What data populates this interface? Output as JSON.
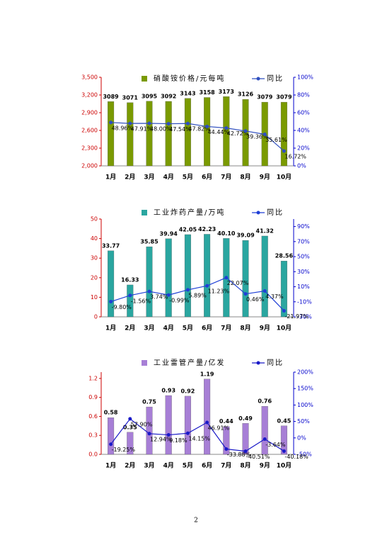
{
  "chart_data": [
    {
      "type": "bar_line",
      "categories": [
        "1月",
        "2月",
        "3月",
        "4月",
        "5月",
        "6月",
        "7月",
        "8月",
        "9月",
        "10月"
      ],
      "ylim": [
        2000,
        3500
      ],
      "yticks": [
        {
          "value": 2000,
          "label": "2,000"
        },
        {
          "value": 2300,
          "label": "2,300"
        },
        {
          "value": 2600,
          "label": "2,600"
        },
        {
          "value": 2900,
          "label": "2,900"
        },
        {
          "value": 3200,
          "label": "3,200"
        },
        {
          "value": 3500,
          "label": "3,500"
        }
      ],
      "y2lim": [
        0,
        100
      ],
      "y2ticks": [
        {
          "value": 0,
          "label": "0%"
        },
        {
          "value": 20,
          "label": "20%"
        },
        {
          "value": 40,
          "label": "40%"
        },
        {
          "value": 60,
          "label": "60%"
        },
        {
          "value": 80,
          "label": "80%"
        },
        {
          "value": 100,
          "label": "100%"
        }
      ],
      "series": [
        {
          "name": "硝酸铵价格/元每吨",
          "type": "bar",
          "color": "#7a9a01",
          "values": [
            3089,
            3071,
            3095,
            3092,
            3143,
            3158,
            3173,
            3126,
            3079,
            3079
          ]
        },
        {
          "name": "同比",
          "type": "line",
          "axis": "y2",
          "color": "#2f4fbf",
          "values": [
            48.96,
            47.91,
            48.0,
            47.54,
            47.82,
            44.44,
            42.72,
            39.36,
            35.61,
            16.72
          ],
          "value_labels": [
            "48.96%",
            "47.91%",
            "48.00%",
            "47.54%",
            "47.82%",
            "44.44%",
            "42.72%",
            "39.36%",
            "35.61%",
            "16.72%"
          ]
        }
      ]
    },
    {
      "type": "bar_line",
      "categories": [
        "1月",
        "2月",
        "3月",
        "4月",
        "5月",
        "6月",
        "7月",
        "8月",
        "9月",
        "10月"
      ],
      "ylim": [
        0,
        50
      ],
      "yticks": [
        0,
        10,
        20,
        30,
        40,
        50
      ],
      "y2lim": [
        -30,
        100
      ],
      "y2ticks": [
        {
          "value": -30,
          "label": "-30%"
        },
        {
          "value": -10,
          "label": "-10%"
        },
        {
          "value": 10,
          "label": "10%"
        },
        {
          "value": 30,
          "label": "30%"
        },
        {
          "value": 50,
          "label": "50%"
        },
        {
          "value": 70,
          "label": "70%"
        },
        {
          "value": 90,
          "label": "90%"
        }
      ],
      "series": [
        {
          "name": "工业炸药产量/万吨",
          "type": "bar",
          "color": "#2aa6a0",
          "values": [
            33.77,
            16.33,
            35.85,
            39.94,
            42.05,
            42.23,
            40.1,
            39.09,
            41.32,
            28.56
          ],
          "value_labels": [
            "33.77",
            "16.33",
            "35.85",
            "39.94",
            "42.05",
            "42.23",
            "40.10",
            "39.09",
            "41.32",
            "28.56"
          ]
        },
        {
          "name": "同比",
          "type": "line",
          "axis": "y2",
          "color": "#1f3fd6",
          "values": [
            -9.8,
            -1.56,
            3.74,
            -0.99,
            5.89,
            11.23,
            22.07,
            0.46,
            4.37,
            -21.97
          ],
          "value_labels": [
            "-9.80%",
            "-1.56%",
            "3.74%",
            "-0.99%",
            "5.89%",
            "11.23%",
            "22.07%",
            "0.46%",
            "4.37%",
            "-21.97%"
          ]
        }
      ]
    },
    {
      "type": "bar_line",
      "categories": [
        "1月",
        "2月",
        "3月",
        "4月",
        "5月",
        "6月",
        "7月",
        "8月",
        "9月",
        "10月"
      ],
      "ylim": [
        0,
        1.3
      ],
      "yticks": [
        {
          "value": 0,
          "label": "0.0"
        },
        0.3,
        0.6,
        0.9,
        1.2
      ],
      "y2lim": [
        -50,
        200
      ],
      "y2ticks": [
        {
          "value": -50,
          "label": "-50%"
        },
        {
          "value": 0,
          "label": "0%"
        },
        {
          "value": 50,
          "label": "50%"
        },
        {
          "value": 100,
          "label": "100%"
        },
        {
          "value": 150,
          "label": "150%"
        },
        {
          "value": 200,
          "label": "200%"
        }
      ],
      "series": [
        {
          "name": "工业雷管产量/亿发",
          "type": "bar",
          "color": "#a77fd6",
          "values": [
            0.58,
            0.35,
            0.75,
            0.93,
            0.92,
            1.19,
            0.44,
            0.49,
            0.76,
            0.45
          ]
        },
        {
          "name": "同比",
          "type": "line",
          "axis": "y2",
          "color": "#1a1ac8",
          "values": [
            -19.25,
            57.9,
            12.94,
            9.18,
            14.15,
            46.91,
            -33.88,
            -40.51,
            -3.64,
            -40.18
          ],
          "value_labels": [
            "-19.25%",
            "57.90%",
            "12.94%",
            "9.18%",
            "14.15%",
            "46.91%",
            "-33.88%",
            "-40.51%",
            "-3.64%",
            "-40.18%"
          ]
        }
      ]
    }
  ],
  "page_number": 2
}
